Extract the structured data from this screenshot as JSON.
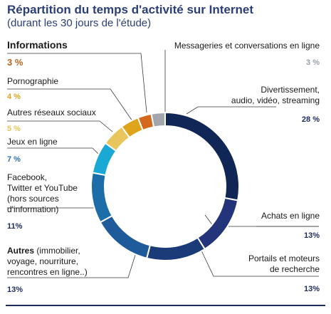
{
  "title": "Répartition du temps d'activité sur Internet",
  "subtitle": "(durant les 30 jours de l'étude)",
  "chart_data": {
    "type": "pie",
    "title": "Répartition du temps d'activité sur Internet",
    "subtitle": "(durant les 30 jours de l'étude)",
    "slices": [
      {
        "label": "Divertissement, audio, vidéo, streaming",
        "value": 28,
        "pct_label": "28 %",
        "color": "#0f2657"
      },
      {
        "label": "Achats en ligne",
        "value": 13,
        "pct_label": "13%",
        "color": "#24347a"
      },
      {
        "label": "Portails et moteurs de recherche",
        "value": 13,
        "pct_label": "13%",
        "color": "#1b3a78"
      },
      {
        "label": "Autres",
        "label_extra": "(immobilier, voyage, nourriture, rencontres en ligne..)",
        "value": 13,
        "pct_label": "13%",
        "color": "#1f5b9a"
      },
      {
        "label": "Facebook, Twitter et YouTube",
        "label_extra": "(hors sources d'information)",
        "value": 11,
        "pct_label": "11%",
        "color": "#1c6da8"
      },
      {
        "label": "Jeux en ligne",
        "value": 7,
        "pct_label": "7 %",
        "color": "#1aa8d4"
      },
      {
        "label": "Autres réseaux sociaux",
        "value": 5,
        "pct_label": "5 %",
        "color": "#e9c65c"
      },
      {
        "label": "Pornographie",
        "value": 4,
        "pct_label": "4 %",
        "color": "#dea41c"
      },
      {
        "label": "Informations",
        "value": 3,
        "pct_label": "3 %",
        "color": "#d2691e"
      },
      {
        "label": "Messageries et conversations en ligne",
        "value": 3,
        "pct_label": "3 %",
        "color": "#a3a7ad"
      }
    ],
    "label_colors": {
      "divertissement": "#1f2a5c",
      "achats": "#1f2a5c",
      "portails": "#1f2a5c",
      "autres": "#1f2a5c",
      "facebook": "#1f2a5c",
      "jeux": "#2c6fb0",
      "reseaux": "#e9c65c",
      "porno": "#dea41c",
      "infos": "#b5651d",
      "messageries": "#9aa0a6"
    }
  },
  "labels": {
    "informations": "Informations",
    "informations_pct": "3 %",
    "messageries": "Messageries et conversations en ligne",
    "messageries_pct": "3 %",
    "pornographie": "Pornographie",
    "pornographie_pct": "4 %",
    "reseaux": "Autres réseaux sociaux",
    "reseaux_pct": "5 %",
    "jeux": "Jeux en ligne",
    "jeux_pct": "7 %",
    "facebook_1": "Facebook,",
    "facebook_2": "Twitter et YouTube",
    "facebook_3": "(hors sources",
    "facebook_4": "d'information)",
    "facebook_pct": "11%",
    "autres_bold": "Autres",
    "autres_1": " (immobilier,",
    "autres_2": "voyage, nourriture,",
    "autres_3": "rencontres en ligne..)",
    "autres_pct": "13%",
    "divert_1": "Divertissement,",
    "divert_2": "audio, vidéo, streaming",
    "divert_pct": "28 %",
    "achats": "Achats en ligne",
    "achats_pct": "13%",
    "portails_1": "Portails et moteurs",
    "portails_2": "de recherche",
    "portails_pct": "13%"
  }
}
